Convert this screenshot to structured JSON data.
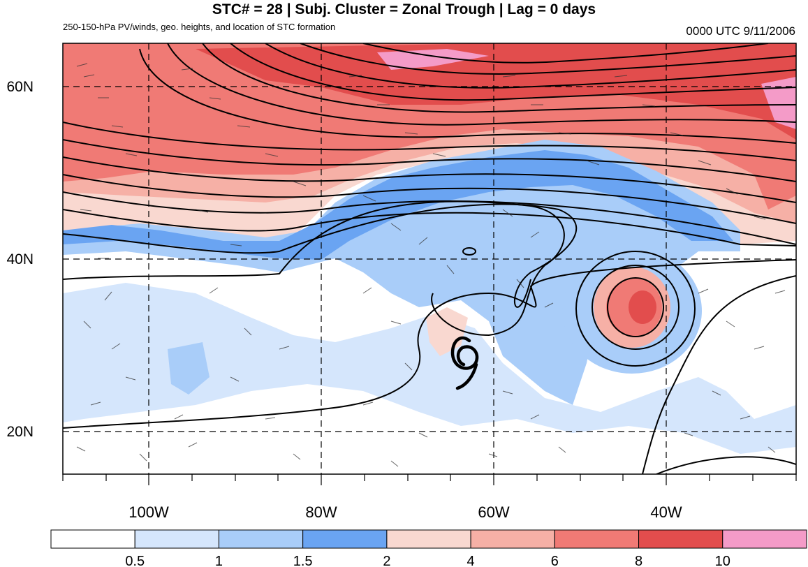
{
  "header": {
    "title": "STC# = 28 | Subj. Cluster = Zonal Trough | Lag = 0 days",
    "subtitle": "250-150-hPa PV/winds, geo. heights, and location of STC formation",
    "datetime": "0000 UTC  9/11/2006"
  },
  "map": {
    "lat_labels": [
      "60N",
      "40N",
      "20N"
    ],
    "lon_labels": [
      "100W",
      "80W",
      "60W",
      "40W"
    ],
    "lat_range": [
      15,
      65
    ],
    "lon_range": [
      -110,
      -25
    ],
    "stc_marker": {
      "symbol": "tropical-cyclone-symbol",
      "lon": -62.5,
      "lat": 28
    },
    "colors": {
      "pv_levels": [
        "#ffffff",
        "#d5e6fc",
        "#a9cdf9",
        "#6aa4f2",
        "#f9d8d0",
        "#f6b0a6",
        "#f07a75",
        "#e24d4d",
        "#f49bc8"
      ],
      "contour": "#000000",
      "gridline": "#000000"
    }
  },
  "colorbar": {
    "labels": [
      "0.5",
      "1",
      "1.5",
      "2",
      "4",
      "6",
      "8",
      "10"
    ],
    "colors": [
      "#ffffff",
      "#d5e6fc",
      "#a9cdf9",
      "#6aa4f2",
      "#f9d8d0",
      "#f6b0a6",
      "#f07a75",
      "#e24d4d",
      "#f49bc8"
    ]
  }
}
